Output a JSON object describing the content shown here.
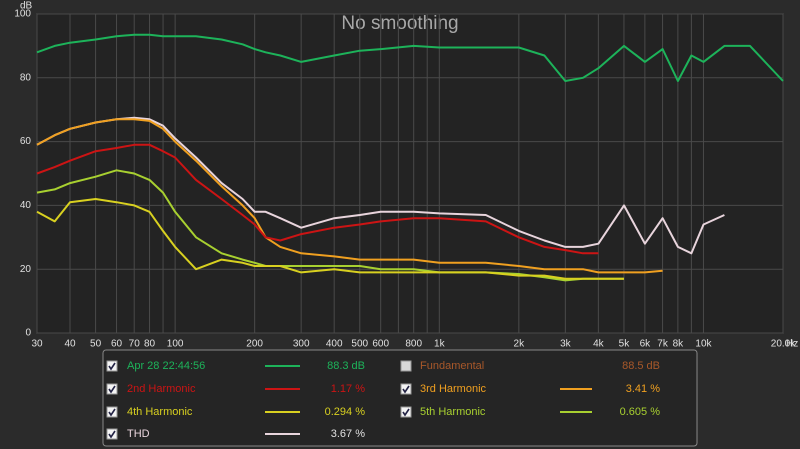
{
  "chart_data": {
    "type": "line",
    "title": "No smoothing",
    "y_label": "dB",
    "x_unit": "Hz",
    "xscale": "log",
    "grid": true,
    "xlim": [
      30,
      20000
    ],
    "ylim": [
      0,
      100
    ],
    "yticks": [
      0,
      20,
      40,
      60,
      80,
      100
    ],
    "xticks": [
      30,
      40,
      50,
      60,
      70,
      80,
      100,
      200,
      300,
      400,
      500,
      600,
      800,
      {
        "value": 1000,
        "label": "1k"
      },
      {
        "value": 2000,
        "label": "2k"
      },
      {
        "value": 3000,
        "label": "3k"
      },
      {
        "value": 4000,
        "label": "4k"
      },
      {
        "value": 5000,
        "label": "5k"
      },
      {
        "value": 6000,
        "label": "6k"
      },
      {
        "value": 7000,
        "label": "7k"
      },
      {
        "value": 8000,
        "label": "8k"
      },
      {
        "value": 10000,
        "label": "10k"
      },
      {
        "value": 20000,
        "label": "20.0k"
      }
    ],
    "xminor_ticks": [
      90,
      700,
      900,
      9000
    ],
    "x": [
      30,
      35,
      40,
      50,
      60,
      70,
      80,
      90,
      100,
      120,
      150,
      180,
      200,
      220,
      250,
      300,
      400,
      500,
      600,
      800,
      1000,
      1500,
      2000,
      2500,
      3000,
      3500,
      4000,
      5000,
      6000,
      7000,
      8000,
      9000,
      10000,
      12000,
      15000,
      20000
    ],
    "series": [
      {
        "name": "Apr 28 22:44:56",
        "color": "#1db35a",
        "checked": true,
        "readout": "88.3 dB",
        "values": [
          88,
          90,
          91,
          92,
          93,
          93.5,
          93.5,
          93,
          93,
          93,
          92,
          90.5,
          89,
          88,
          87,
          85,
          87,
          88.5,
          89,
          90,
          89.5,
          89.5,
          89.5,
          87,
          79,
          80,
          83,
          90,
          85,
          89,
          79,
          87,
          85,
          90,
          90,
          79
        ]
      },
      {
        "name": "Fundamental",
        "color": "#a8582a",
        "checked": false,
        "readout": "88.5 dB"
      },
      {
        "name": "2nd Harmonic",
        "color": "#cc1414",
        "checked": true,
        "readout": "1.17 %",
        "values": [
          50,
          52,
          54,
          57,
          58,
          59,
          59,
          57,
          55,
          48,
          42,
          37,
          34,
          30,
          29,
          31,
          33,
          34,
          35,
          36,
          36,
          35,
          30,
          27,
          26,
          25,
          25,
          null,
          null,
          null,
          null,
          null,
          null,
          null,
          null,
          null
        ]
      },
      {
        "name": "3rd Harmonic",
        "color": "#f0a020",
        "checked": true,
        "readout": "3.41 %",
        "values": [
          59,
          62,
          64,
          66,
          67,
          67,
          66.5,
          64,
          60,
          54,
          46,
          40,
          36,
          30,
          27,
          25,
          24,
          23,
          23,
          23,
          22,
          22,
          21,
          20,
          20,
          20,
          19,
          19,
          19,
          19.5,
          null,
          null,
          null,
          null,
          null,
          null
        ]
      },
      {
        "name": "4th Harmonic",
        "color": "#d8d020",
        "checked": true,
        "readout": "0.294 %",
        "values": [
          38,
          35,
          41,
          42,
          41,
          40,
          38,
          32,
          27,
          20,
          23,
          22,
          21,
          21,
          21,
          19,
          20,
          19,
          19,
          19,
          19,
          19,
          18,
          18,
          17,
          17,
          17,
          17,
          null,
          null,
          null,
          null,
          null,
          null,
          null,
          null
        ]
      },
      {
        "name": "5th Harmonic",
        "color": "#a8d030",
        "checked": true,
        "readout": "0.605 %",
        "values": [
          44,
          45,
          47,
          49,
          51,
          50,
          48,
          44,
          38,
          30,
          25,
          23,
          22,
          21,
          21,
          21,
          21,
          21,
          20,
          20,
          19,
          19,
          18.5,
          17.5,
          16.5,
          17,
          17,
          17,
          null,
          null,
          null,
          null,
          null,
          null,
          null,
          null
        ]
      },
      {
        "name": "THD",
        "color": "#e8d4dc",
        "checked": true,
        "readout": "3.67 %",
        "values": [
          59,
          62,
          64,
          66,
          67,
          67.5,
          67,
          65,
          61,
          55,
          47,
          42,
          38,
          38,
          36,
          33,
          36,
          37,
          38,
          38,
          37.5,
          37,
          32,
          29,
          27,
          27,
          28,
          40,
          28,
          36,
          27,
          25,
          34,
          37,
          null,
          null
        ]
      }
    ]
  }
}
